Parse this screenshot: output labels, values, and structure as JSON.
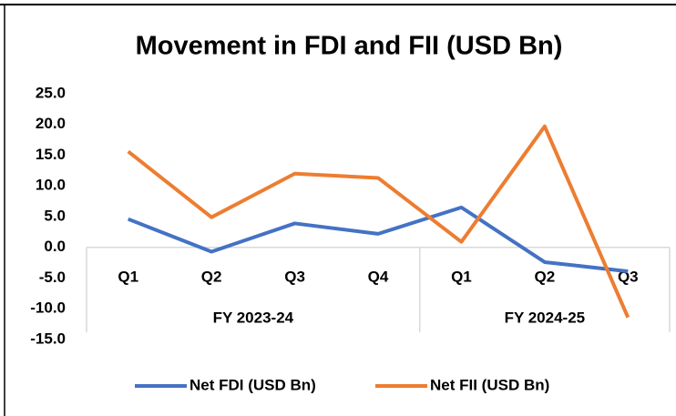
{
  "chart_data": {
    "type": "line",
    "title": "Movement in FDI and FII (USD Bn)",
    "groups": [
      {
        "name": "FY 2023-24",
        "categories": [
          "Q1",
          "Q2",
          "Q3",
          "Q4"
        ]
      },
      {
        "name": "FY 2024-25",
        "categories": [
          "Q1",
          "Q2",
          "Q3"
        ]
      }
    ],
    "series": [
      {
        "name": "Net FDI (USD Bn)",
        "color": "#4472c4",
        "values": [
          4.6,
          -0.7,
          3.9,
          2.2,
          6.5,
          -2.4,
          -3.9
        ]
      },
      {
        "name": "Net FII (USD Bn)",
        "color": "#ed7d31",
        "values": [
          15.6,
          4.9,
          12.0,
          11.3,
          0.9,
          19.7,
          -11.4
        ]
      }
    ],
    "ylim": [
      -15,
      25
    ],
    "yticks": [
      {
        "value": -15,
        "label": "-15.0"
      },
      {
        "value": -10,
        "label": "-10.0"
      },
      {
        "value": -5,
        "label": "-5.0"
      },
      {
        "value": 0,
        "label": "0.0"
      },
      {
        "value": 5,
        "label": "5.0"
      },
      {
        "value": 10,
        "label": "10.0"
      },
      {
        "value": 15,
        "label": "15.0"
      },
      {
        "value": 20,
        "label": "20.0"
      },
      {
        "value": 25,
        "label": "25.0"
      }
    ],
    "legend": "bottom"
  }
}
